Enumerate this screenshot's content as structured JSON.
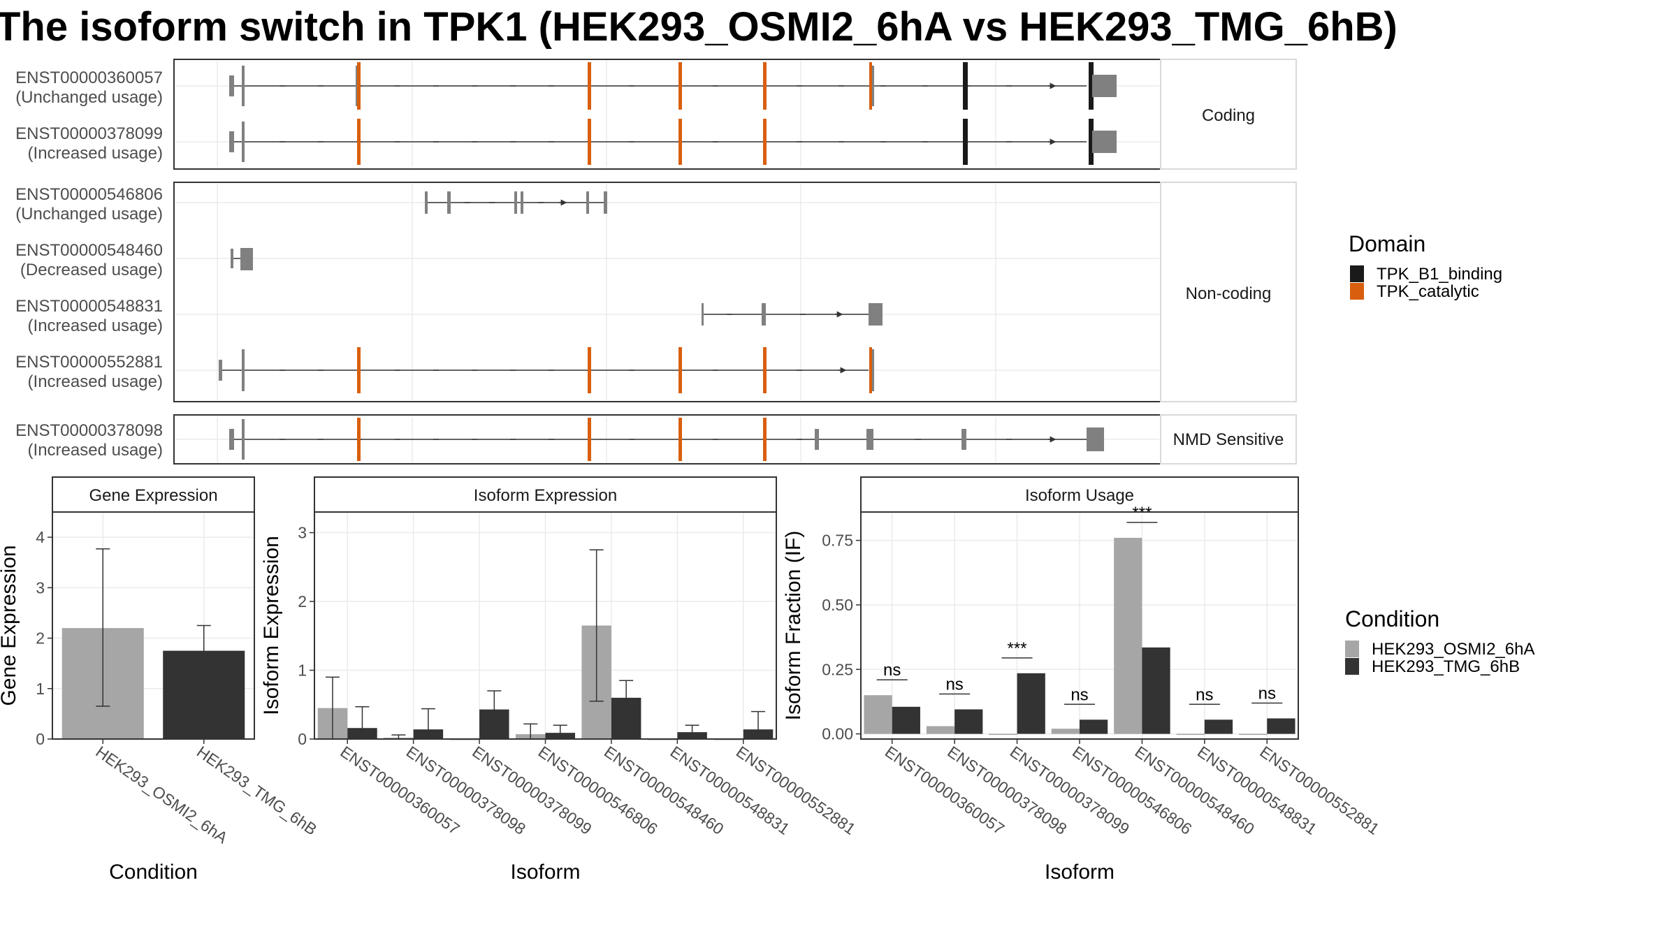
{
  "title": "The isoform switch in TPK1 (HEK293_OSMI2_6hA vs HEK293_TMG_6hB)",
  "domain_legend": {
    "title": "Domain",
    "items": [
      {
        "label": "TPK_B1_binding",
        "color": "#1a1a1a"
      },
      {
        "label": "TPK_catalytic",
        "color": "#d95f0e"
      }
    ]
  },
  "condition_legend": {
    "title": "Condition",
    "items": [
      {
        "label": "HEK293_OSMI2_6hA",
        "color": "#a6a6a6"
      },
      {
        "label": "HEK293_TMG_6hB",
        "color": "#333333"
      }
    ]
  },
  "transcript_groups": [
    {
      "strip": "Coding",
      "transcripts": [
        {
          "id": "ENST00000360057",
          "usage": "(Unchanged usage)"
        },
        {
          "id": "ENST00000378099",
          "usage": "(Increased usage)"
        }
      ]
    },
    {
      "strip": "Non-coding",
      "transcripts": [
        {
          "id": "ENST00000546806",
          "usage": "(Unchanged usage)"
        },
        {
          "id": "ENST00000548460",
          "usage": "(Decreased usage)"
        },
        {
          "id": "ENST00000548831",
          "usage": "(Increased usage)"
        },
        {
          "id": "ENST00000552881",
          "usage": "(Increased usage)"
        }
      ]
    },
    {
      "strip": "NMD Sensitive",
      "transcripts": [
        {
          "id": "ENST00000378098",
          "usage": "(Increased usage)"
        }
      ]
    }
  ],
  "chart_data": [
    {
      "type": "bar",
      "strip": "Gene Expression",
      "xlabel": "Condition",
      "ylabel": "Gene Expression",
      "ylim": [
        0,
        4.5
      ],
      "yticks": [
        "0",
        "1",
        "2",
        "3",
        "4"
      ],
      "categories": [
        "HEK293_OSMI2_6hA",
        "HEK293_TMG_6hB"
      ],
      "values": [
        2.2,
        1.75
      ],
      "err_low": [
        0.65,
        1.25
      ],
      "err_high": [
        3.77,
        2.25
      ]
    },
    {
      "type": "bar",
      "strip": "Isoform Expression",
      "xlabel": "Isoform",
      "ylabel": "Isoform Expression",
      "ylim": [
        0,
        3.3
      ],
      "yticks": [
        "0",
        "1",
        "2",
        "3"
      ],
      "categories": [
        "ENST00000360057",
        "ENST00000378098",
        "ENST00000378099",
        "ENST00000546806",
        "ENST00000548460",
        "ENST00000548831",
        "ENST00000552881"
      ],
      "series": [
        {
          "name": "HEK293_OSMI2_6hA",
          "values": [
            0.45,
            0.02,
            0.0,
            0.07,
            1.65,
            0.0,
            0.0
          ],
          "err_low": [
            0.0,
            0.0,
            0.0,
            0.0,
            0.55,
            0.0,
            0.0
          ],
          "err_high": [
            0.9,
            0.06,
            0.0,
            0.22,
            2.75,
            0.0,
            0.0
          ]
        },
        {
          "name": "HEK293_TMG_6hB",
          "values": [
            0.16,
            0.14,
            0.43,
            0.09,
            0.6,
            0.1,
            0.14
          ],
          "err_low": [
            0.0,
            0.0,
            0.15,
            0.0,
            0.35,
            0.0,
            0.0
          ],
          "err_high": [
            0.47,
            0.44,
            0.7,
            0.2,
            0.85,
            0.2,
            0.4
          ]
        }
      ]
    },
    {
      "type": "bar",
      "strip": "Isoform Usage",
      "xlabel": "Isoform",
      "ylabel": "Isoform Fraction (IF)",
      "ylim": [
        -0.02,
        0.86
      ],
      "yticks": [
        "0.00",
        "0.25",
        "0.50",
        "0.75"
      ],
      "categories": [
        "ENST00000360057",
        "ENST00000378098",
        "ENST00000378099",
        "ENST00000546806",
        "ENST00000548460",
        "ENST00000548831",
        "ENST00000552881"
      ],
      "series": [
        {
          "name": "HEK293_OSMI2_6hA",
          "values": [
            0.15,
            0.03,
            0.0,
            0.02,
            0.76,
            0.0,
            0.0
          ]
        },
        {
          "name": "HEK293_TMG_6hB",
          "values": [
            0.105,
            0.095,
            0.235,
            0.055,
            0.335,
            0.055,
            0.06
          ]
        }
      ],
      "significance": [
        "ns",
        "ns",
        "***",
        "ns",
        "***",
        "ns",
        "ns"
      ]
    }
  ]
}
